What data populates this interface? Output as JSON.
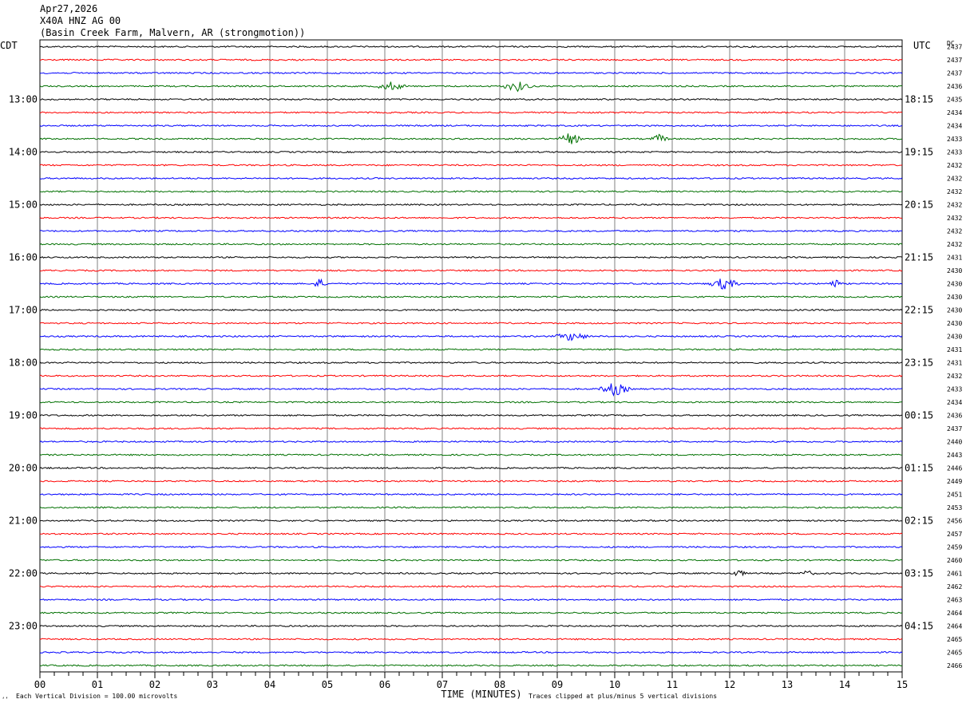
{
  "header": {
    "date": "Apr27,2026",
    "station": "X40A HNZ AG 00",
    "location": "(Basin Creek Farm, Malvern, AR (strongmotion))"
  },
  "left_zone_label": "CDT",
  "right_zone_label": "UTC",
  "dc_label": "DC",
  "footer": {
    "scale_note": "Each Vertical Division =  100.00 microvolts",
    "clip_note": "Traces clipped at plus/minus 5 vertical divisions",
    "corner_mark": "‘’"
  },
  "chart_data": {
    "type": "line",
    "title": "X40A HNZ AG 00",
    "xlabel": "TIME (MINUTES)",
    "x_ticks": [
      "00",
      "01",
      "02",
      "03",
      "04",
      "05",
      "06",
      "07",
      "08",
      "09",
      "10",
      "11",
      "12",
      "13",
      "14",
      "15"
    ],
    "xlim": [
      0,
      15
    ],
    "trace_colors": [
      "#000000",
      "#ff0000",
      "#0000ff",
      "#007000"
    ],
    "trace_count": 48,
    "left_time_labels": [
      {
        "row": 4,
        "label": "13:00"
      },
      {
        "row": 8,
        "label": "14:00"
      },
      {
        "row": 12,
        "label": "15:00"
      },
      {
        "row": 16,
        "label": "16:00"
      },
      {
        "row": 20,
        "label": "17:00"
      },
      {
        "row": 24,
        "label": "18:00"
      },
      {
        "row": 28,
        "label": "19:00"
      },
      {
        "row": 32,
        "label": "20:00"
      },
      {
        "row": 36,
        "label": "21:00"
      },
      {
        "row": 40,
        "label": "22:00"
      },
      {
        "row": 44,
        "label": "23:00"
      }
    ],
    "right_time_labels": [
      {
        "row": 4,
        "label": "18:15"
      },
      {
        "row": 8,
        "label": "19:15"
      },
      {
        "row": 12,
        "label": "20:15"
      },
      {
        "row": 16,
        "label": "21:15"
      },
      {
        "row": 20,
        "label": "22:15"
      },
      {
        "row": 24,
        "label": "23:15"
      },
      {
        "row": 28,
        "label": "00:15"
      },
      {
        "row": 32,
        "label": "01:15"
      },
      {
        "row": 36,
        "label": "02:15"
      },
      {
        "row": 40,
        "label": "03:15"
      },
      {
        "row": 44,
        "label": "04:15"
      }
    ],
    "dc_values": [
      "2437",
      "2437",
      "2437",
      "2436",
      "2435",
      "2434",
      "2434",
      "2433",
      "2433",
      "2432",
      "2432",
      "2432",
      "2432",
      "2432",
      "2432",
      "2432",
      "2431",
      "2430",
      "2430",
      "2430",
      "2430",
      "2430",
      "2430",
      "2431",
      "2431",
      "2432",
      "2433",
      "2434",
      "2436",
      "2437",
      "2440",
      "2443",
      "2446",
      "2449",
      "2451",
      "2453",
      "2456",
      "2457",
      "2459",
      "2460",
      "2461",
      "2462",
      "2463",
      "2464",
      "2464",
      "2465",
      "2465",
      "2466"
    ],
    "events": [
      {
        "row": 3,
        "start": 5.8,
        "end": 6.4,
        "amplitude": 5
      },
      {
        "row": 3,
        "start": 8.0,
        "end": 8.6,
        "amplitude": 6
      },
      {
        "row": 7,
        "start": 9.0,
        "end": 9.45,
        "amplitude": 7
      },
      {
        "row": 7,
        "start": 10.6,
        "end": 10.95,
        "amplitude": 5
      },
      {
        "row": 18,
        "start": 4.7,
        "end": 5.0,
        "amplitude": 6
      },
      {
        "row": 18,
        "start": 11.6,
        "end": 12.2,
        "amplitude": 7
      },
      {
        "row": 18,
        "start": 13.7,
        "end": 13.95,
        "amplitude": 6
      },
      {
        "row": 22,
        "start": 8.9,
        "end": 9.6,
        "amplitude": 5
      },
      {
        "row": 26,
        "start": 9.7,
        "end": 10.3,
        "amplitude": 8
      },
      {
        "row": 40,
        "start": 12.0,
        "end": 12.3,
        "amplitude": 4
      },
      {
        "row": 40,
        "start": 13.2,
        "end": 13.5,
        "amplitude": 3
      }
    ]
  }
}
